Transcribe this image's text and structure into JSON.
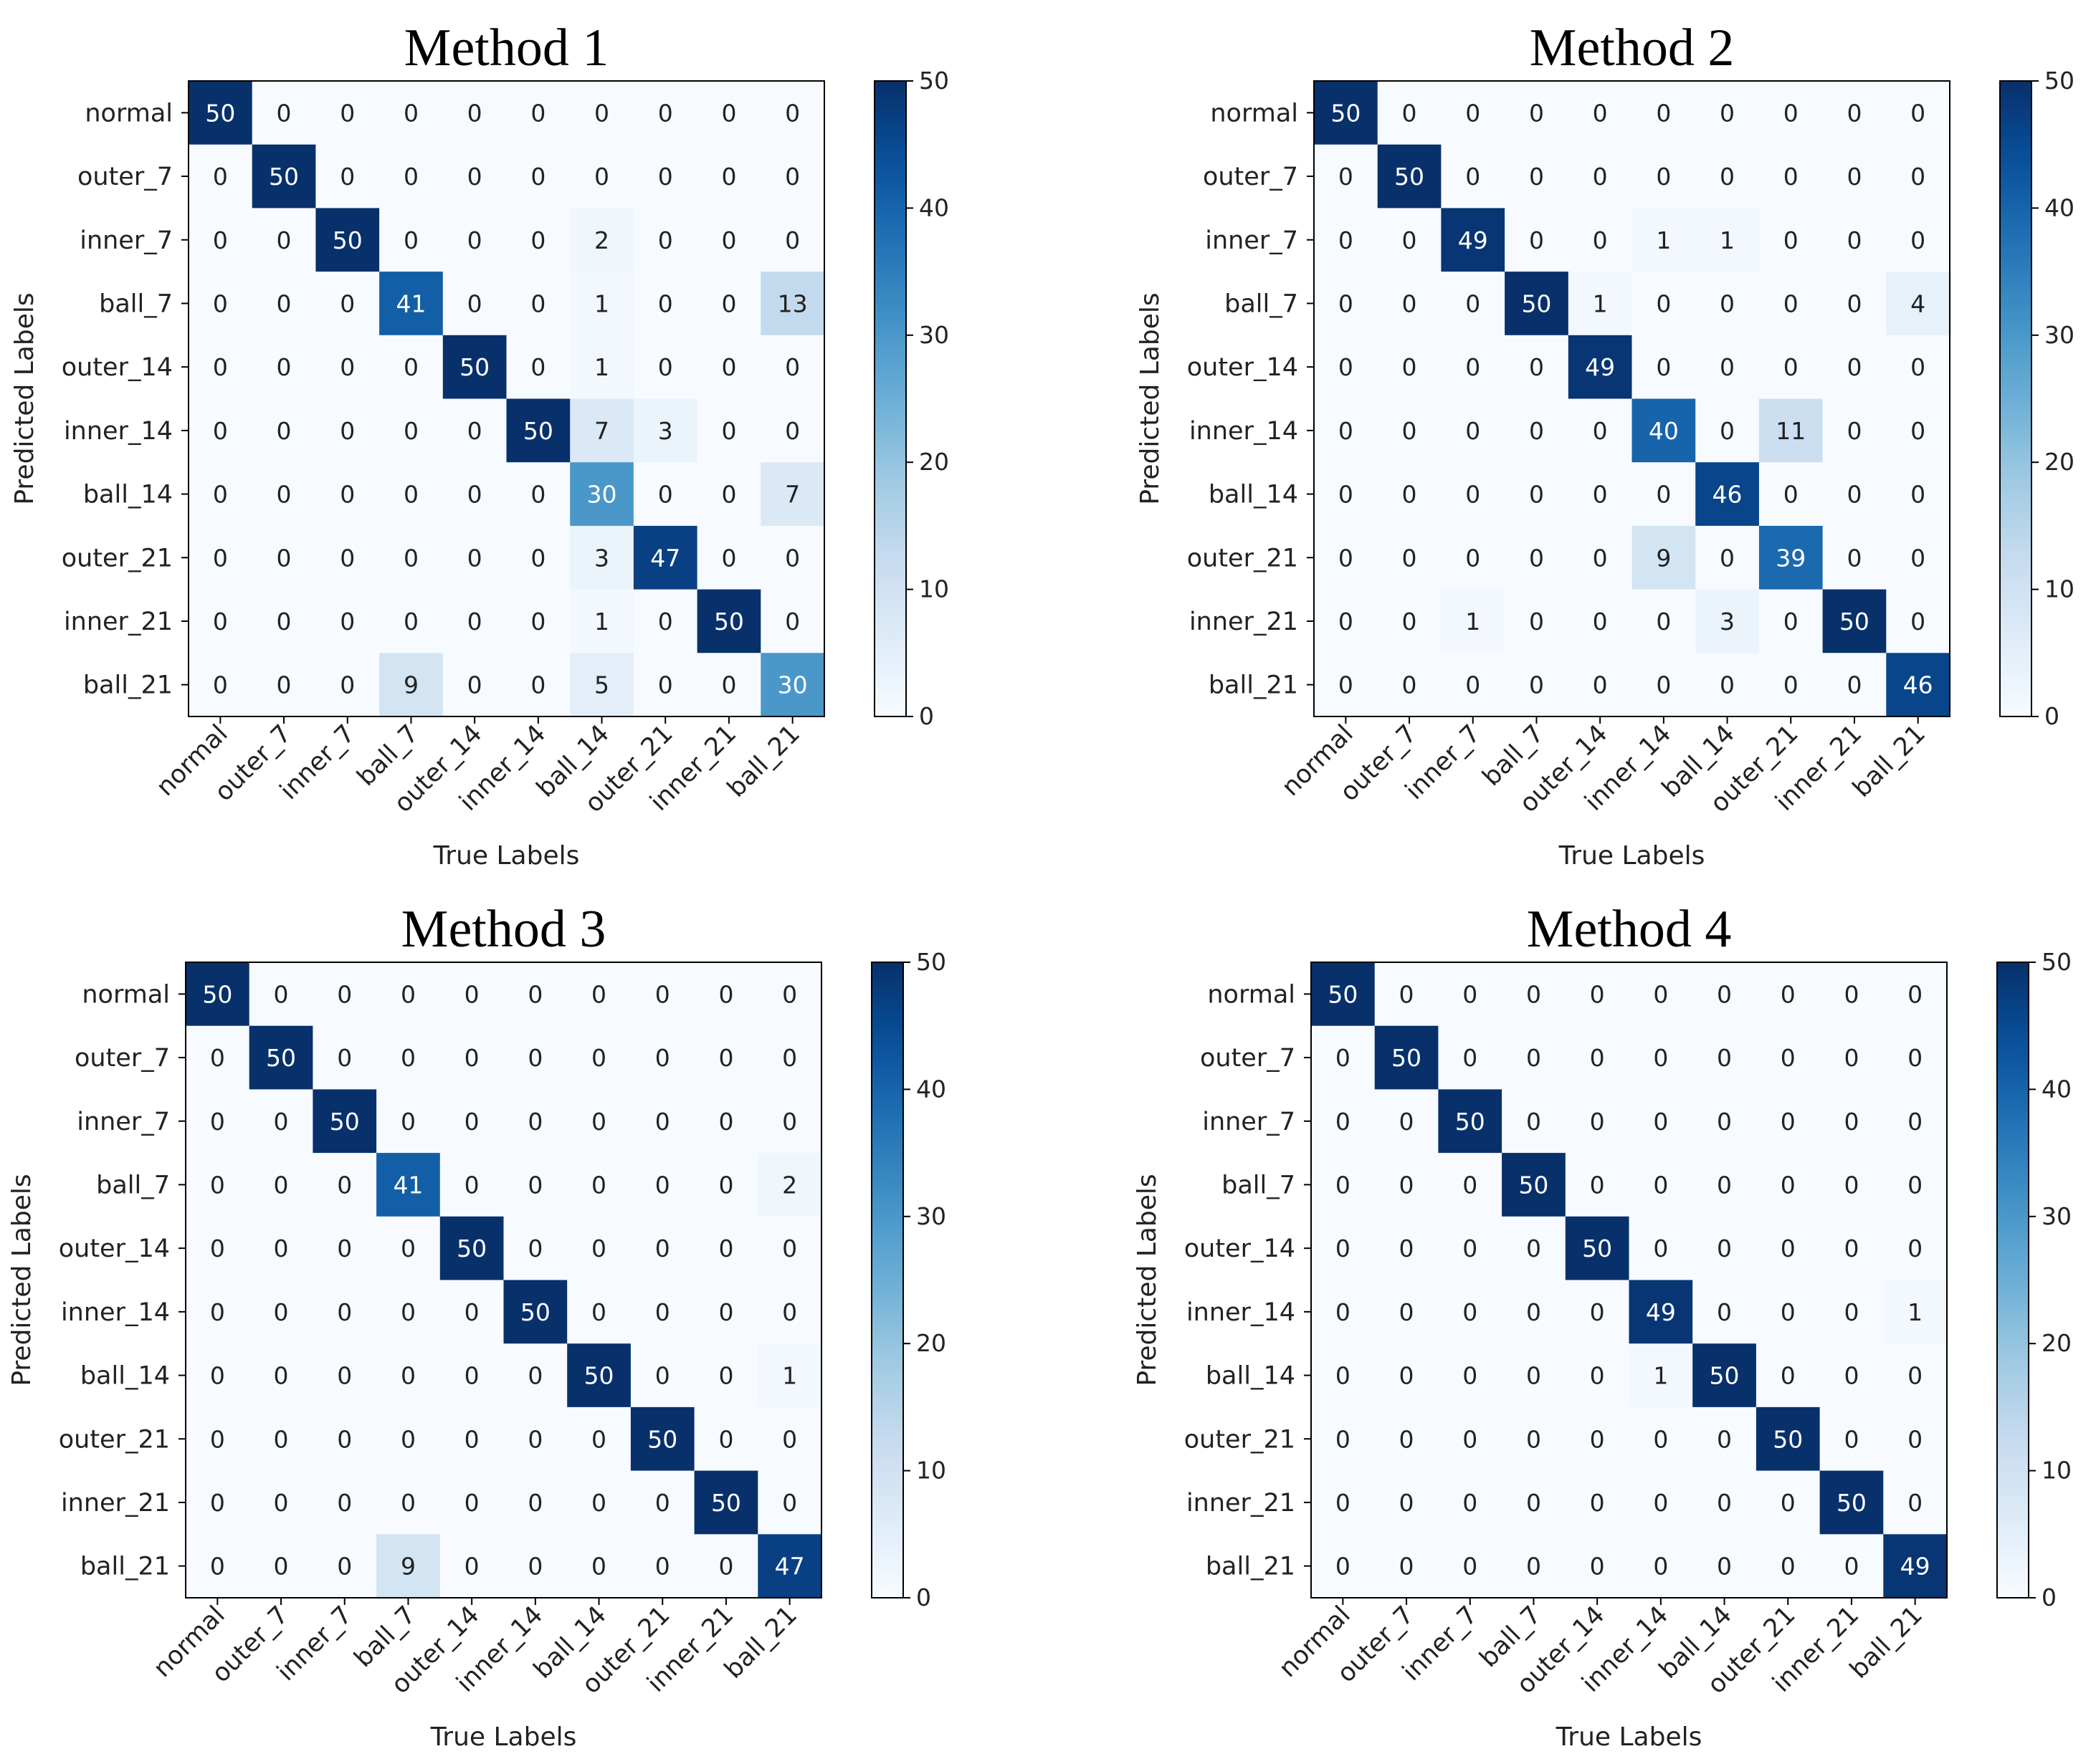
{
  "chart_data": [
    {
      "type": "heatmap",
      "title": "Method 1",
      "xlabel": "True Labels",
      "ylabel": "Predicted Labels",
      "categories": [
        "normal",
        "outer_7",
        "inner_7",
        "ball_7",
        "outer_14",
        "inner_14",
        "ball_14",
        "outer_21",
        "inner_21",
        "ball_21"
      ],
      "matrix": [
        [
          50,
          0,
          0,
          0,
          0,
          0,
          0,
          0,
          0,
          0
        ],
        [
          0,
          50,
          0,
          0,
          0,
          0,
          0,
          0,
          0,
          0
        ],
        [
          0,
          0,
          50,
          0,
          0,
          0,
          2,
          0,
          0,
          0
        ],
        [
          0,
          0,
          0,
          41,
          0,
          0,
          1,
          0,
          0,
          13
        ],
        [
          0,
          0,
          0,
          0,
          50,
          0,
          1,
          0,
          0,
          0
        ],
        [
          0,
          0,
          0,
          0,
          0,
          50,
          7,
          3,
          0,
          0
        ],
        [
          0,
          0,
          0,
          0,
          0,
          0,
          30,
          0,
          0,
          7
        ],
        [
          0,
          0,
          0,
          0,
          0,
          0,
          3,
          47,
          0,
          0
        ],
        [
          0,
          0,
          0,
          0,
          0,
          0,
          1,
          0,
          50,
          0
        ],
        [
          0,
          0,
          0,
          9,
          0,
          0,
          5,
          0,
          0,
          30
        ]
      ],
      "colorbar": {
        "min": 0,
        "max": 50,
        "ticks": [
          0,
          10,
          20,
          30,
          40,
          50
        ],
        "colormap": "Blues"
      }
    },
    {
      "type": "heatmap",
      "title": "Method 2",
      "xlabel": "True Labels",
      "ylabel": "Predicted Labels",
      "categories": [
        "normal",
        "outer_7",
        "inner_7",
        "ball_7",
        "outer_14",
        "inner_14",
        "ball_14",
        "outer_21",
        "inner_21",
        "ball_21"
      ],
      "matrix": [
        [
          50,
          0,
          0,
          0,
          0,
          0,
          0,
          0,
          0,
          0
        ],
        [
          0,
          50,
          0,
          0,
          0,
          0,
          0,
          0,
          0,
          0
        ],
        [
          0,
          0,
          49,
          0,
          0,
          1,
          1,
          0,
          0,
          0
        ],
        [
          0,
          0,
          0,
          50,
          1,
          0,
          0,
          0,
          0,
          4
        ],
        [
          0,
          0,
          0,
          0,
          49,
          0,
          0,
          0,
          0,
          0
        ],
        [
          0,
          0,
          0,
          0,
          0,
          40,
          0,
          11,
          0,
          0
        ],
        [
          0,
          0,
          0,
          0,
          0,
          0,
          46,
          0,
          0,
          0
        ],
        [
          0,
          0,
          0,
          0,
          0,
          9,
          0,
          39,
          0,
          0
        ],
        [
          0,
          0,
          1,
          0,
          0,
          0,
          3,
          0,
          50,
          0
        ],
        [
          0,
          0,
          0,
          0,
          0,
          0,
          0,
          0,
          0,
          46
        ]
      ],
      "colorbar": {
        "min": 0,
        "max": 50,
        "ticks": [
          0,
          10,
          20,
          30,
          40,
          50
        ],
        "colormap": "Blues"
      }
    },
    {
      "type": "heatmap",
      "title": "Method 3",
      "xlabel": "True Labels",
      "ylabel": "Predicted Labels",
      "categories": [
        "normal",
        "outer_7",
        "inner_7",
        "ball_7",
        "outer_14",
        "inner_14",
        "ball_14",
        "outer_21",
        "inner_21",
        "ball_21"
      ],
      "matrix": [
        [
          50,
          0,
          0,
          0,
          0,
          0,
          0,
          0,
          0,
          0
        ],
        [
          0,
          50,
          0,
          0,
          0,
          0,
          0,
          0,
          0,
          0
        ],
        [
          0,
          0,
          50,
          0,
          0,
          0,
          0,
          0,
          0,
          0
        ],
        [
          0,
          0,
          0,
          41,
          0,
          0,
          0,
          0,
          0,
          2
        ],
        [
          0,
          0,
          0,
          0,
          50,
          0,
          0,
          0,
          0,
          0
        ],
        [
          0,
          0,
          0,
          0,
          0,
          50,
          0,
          0,
          0,
          0
        ],
        [
          0,
          0,
          0,
          0,
          0,
          0,
          50,
          0,
          0,
          1
        ],
        [
          0,
          0,
          0,
          0,
          0,
          0,
          0,
          50,
          0,
          0
        ],
        [
          0,
          0,
          0,
          0,
          0,
          0,
          0,
          0,
          50,
          0
        ],
        [
          0,
          0,
          0,
          9,
          0,
          0,
          0,
          0,
          0,
          47
        ]
      ],
      "colorbar": {
        "min": 0,
        "max": 50,
        "ticks": [
          0,
          10,
          20,
          30,
          40,
          50
        ],
        "colormap": "Blues"
      }
    },
    {
      "type": "heatmap",
      "title": "Method 4",
      "xlabel": "True Labels",
      "ylabel": "Predicted Labels",
      "categories": [
        "normal",
        "outer_7",
        "inner_7",
        "ball_7",
        "outer_14",
        "inner_14",
        "ball_14",
        "outer_21",
        "inner_21",
        "ball_21"
      ],
      "matrix": [
        [
          50,
          0,
          0,
          0,
          0,
          0,
          0,
          0,
          0,
          0
        ],
        [
          0,
          50,
          0,
          0,
          0,
          0,
          0,
          0,
          0,
          0
        ],
        [
          0,
          0,
          50,
          0,
          0,
          0,
          0,
          0,
          0,
          0
        ],
        [
          0,
          0,
          0,
          50,
          0,
          0,
          0,
          0,
          0,
          0
        ],
        [
          0,
          0,
          0,
          0,
          50,
          0,
          0,
          0,
          0,
          0
        ],
        [
          0,
          0,
          0,
          0,
          0,
          49,
          0,
          0,
          0,
          1
        ],
        [
          0,
          0,
          0,
          0,
          0,
          1,
          50,
          0,
          0,
          0
        ],
        [
          0,
          0,
          0,
          0,
          0,
          0,
          0,
          50,
          0,
          0
        ],
        [
          0,
          0,
          0,
          0,
          0,
          0,
          0,
          0,
          50,
          0
        ],
        [
          0,
          0,
          0,
          0,
          0,
          0,
          0,
          0,
          0,
          49
        ]
      ],
      "colorbar": {
        "min": 0,
        "max": 50,
        "ticks": [
          0,
          10,
          20,
          30,
          40,
          50
        ],
        "colormap": "Blues"
      }
    }
  ]
}
